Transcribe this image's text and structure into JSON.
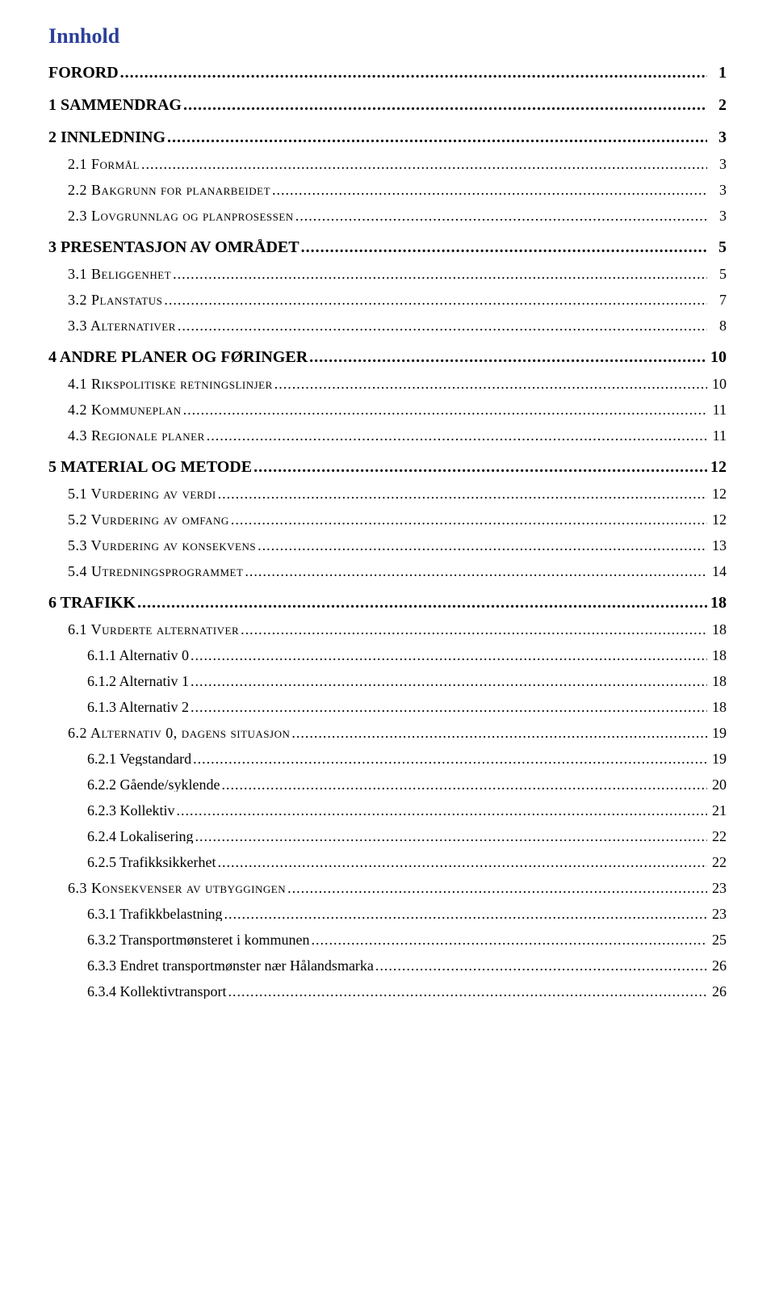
{
  "title": "Innhold",
  "colors": {
    "title": "#2b3f9a",
    "text": "#000000",
    "background": "#ffffff"
  },
  "typography": {
    "font_family": "Times New Roman",
    "title_size_pt": 20,
    "l0_size_pt": 15,
    "l1_size_pt": 13,
    "l2_size_pt": 13
  },
  "entries": [
    {
      "level": 0,
      "label": "FORORD",
      "page": "1",
      "bold": true,
      "smallcaps": false
    },
    {
      "level": 0,
      "label": "1  SAMMENDRAG",
      "page": "2",
      "bold": true,
      "smallcaps": false
    },
    {
      "level": 0,
      "label": "2  INNLEDNING",
      "page": "3",
      "bold": true,
      "smallcaps": false
    },
    {
      "level": 1,
      "label": "2.1  Formål",
      "page": "3",
      "bold": false,
      "smallcaps": true
    },
    {
      "level": 1,
      "label": "2.2  Bakgrunn for planarbeidet",
      "page": "3",
      "bold": false,
      "smallcaps": true
    },
    {
      "level": 1,
      "label": "2.3  Lovgrunnlag og planprosessen",
      "page": "3",
      "bold": false,
      "smallcaps": true
    },
    {
      "level": 0,
      "label": "3  PRESENTASJON AV OMRÅDET",
      "page": "5",
      "bold": true,
      "smallcaps": false
    },
    {
      "level": 1,
      "label": "3.1  Beliggenhet",
      "page": "5",
      "bold": false,
      "smallcaps": true
    },
    {
      "level": 1,
      "label": "3.2  Planstatus",
      "page": "7",
      "bold": false,
      "smallcaps": true
    },
    {
      "level": 1,
      "label": "3.3  Alternativer",
      "page": "8",
      "bold": false,
      "smallcaps": true
    },
    {
      "level": 0,
      "label": "4  ANDRE PLANER OG FØRINGER",
      "page": "10",
      "bold": true,
      "smallcaps": false
    },
    {
      "level": 1,
      "label": "4.1  Rikspolitiske retningslinjer",
      "page": "10",
      "bold": false,
      "smallcaps": true
    },
    {
      "level": 1,
      "label": "4.2  Kommuneplan",
      "page": "11",
      "bold": false,
      "smallcaps": true
    },
    {
      "level": 1,
      "label": "4.3  Regionale planer",
      "page": "11",
      "bold": false,
      "smallcaps": true
    },
    {
      "level": 0,
      "label": "5  MATERIAL OG METODE",
      "page": "12",
      "bold": true,
      "smallcaps": false
    },
    {
      "level": 1,
      "label": "5.1  Vurdering av verdi",
      "page": "12",
      "bold": false,
      "smallcaps": true
    },
    {
      "level": 1,
      "label": "5.2  Vurdering av omfang",
      "page": "12",
      "bold": false,
      "smallcaps": true
    },
    {
      "level": 1,
      "label": "5.3  Vurdering av konsekvens",
      "page": "13",
      "bold": false,
      "smallcaps": true
    },
    {
      "level": 1,
      "label": "5.4  Utredningsprogrammet",
      "page": "14",
      "bold": false,
      "smallcaps": true
    },
    {
      "level": 0,
      "label": "6  TRAFIKK",
      "page": "18",
      "bold": true,
      "smallcaps": false
    },
    {
      "level": 1,
      "label": "6.1  Vurderte alternativer",
      "page": "18",
      "bold": false,
      "smallcaps": true
    },
    {
      "level": 2,
      "label": "6.1.1  Alternativ 0",
      "page": "18",
      "bold": false,
      "smallcaps": false
    },
    {
      "level": 2,
      "label": "6.1.2  Alternativ 1",
      "page": "18",
      "bold": false,
      "smallcaps": false
    },
    {
      "level": 2,
      "label": "6.1.3  Alternativ 2",
      "page": "18",
      "bold": false,
      "smallcaps": false
    },
    {
      "level": 1,
      "label": "6.2  Alternativ 0, dagens situasjon",
      "page": "19",
      "bold": false,
      "smallcaps": true
    },
    {
      "level": 2,
      "label": "6.2.1  Vegstandard",
      "page": "19",
      "bold": false,
      "smallcaps": false
    },
    {
      "level": 2,
      "label": "6.2.2  Gående/syklende",
      "page": "20",
      "bold": false,
      "smallcaps": false
    },
    {
      "level": 2,
      "label": "6.2.3  Kollektiv",
      "page": "21",
      "bold": false,
      "smallcaps": false
    },
    {
      "level": 2,
      "label": "6.2.4  Lokalisering",
      "page": "22",
      "bold": false,
      "smallcaps": false
    },
    {
      "level": 2,
      "label": "6.2.5  Trafikksikkerhet",
      "page": "22",
      "bold": false,
      "smallcaps": false
    },
    {
      "level": 1,
      "label": "6.3  Konsekvenser av utbyggingen",
      "page": "23",
      "bold": false,
      "smallcaps": true
    },
    {
      "level": 2,
      "label": "6.3.1  Trafikkbelastning",
      "page": "23",
      "bold": false,
      "smallcaps": false
    },
    {
      "level": 2,
      "label": "6.3.2  Transportmønsteret i kommunen",
      "page": "25",
      "bold": false,
      "smallcaps": false
    },
    {
      "level": 2,
      "label": "6.3.3  Endret transportmønster nær Hålandsmarka",
      "page": "26",
      "bold": false,
      "smallcaps": false
    },
    {
      "level": 2,
      "label": "6.3.4  Kollektivtransport",
      "page": "26",
      "bold": false,
      "smallcaps": false
    }
  ]
}
